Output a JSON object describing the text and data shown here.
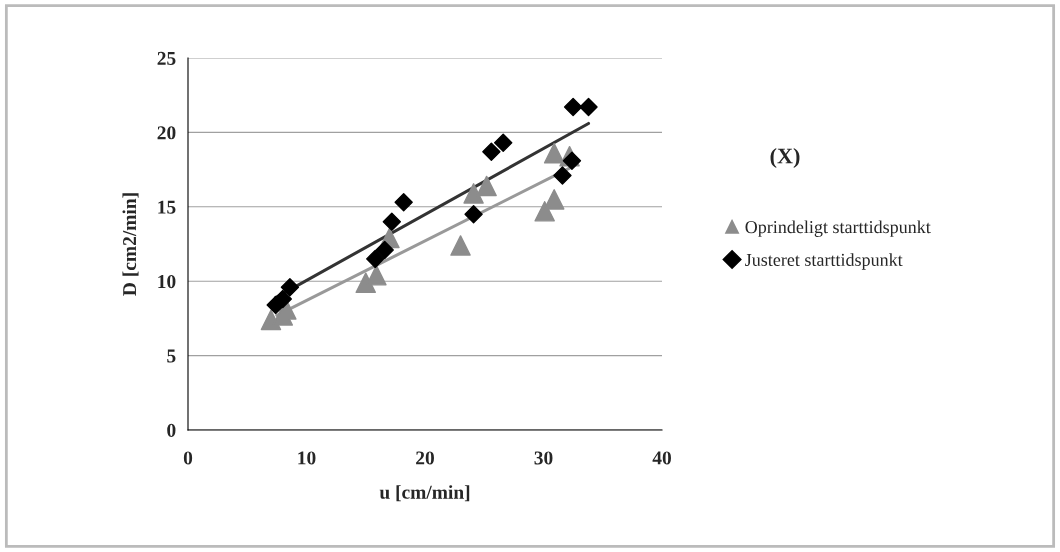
{
  "chart_data": {
    "type": "scatter",
    "xlabel": "u [cm/min]",
    "ylabel": "D [cm2/min]",
    "annotations": [
      "(X)"
    ],
    "xlim": [
      0,
      40
    ],
    "ylim": [
      0,
      25
    ],
    "xticks": [
      0,
      10,
      20,
      30,
      40
    ],
    "yticks": [
      0,
      5,
      10,
      15,
      20,
      25
    ],
    "grid": "y",
    "legend": "right",
    "series": [
      {
        "name": "Oprindeligt starttidspunkt",
        "color": "#8c8c8c",
        "marker": "triangle",
        "x": [
          7,
          8,
          8.3,
          15,
          15.9,
          17,
          23,
          24.1,
          25.2,
          30.1,
          30.9,
          30.9,
          32.2
        ],
        "values": [
          7.4,
          7.7,
          8.1,
          9.9,
          10.4,
          12.9,
          12.4,
          15.9,
          16.4,
          14.7,
          15.5,
          18.6,
          18.4
        ]
      },
      {
        "name": "Justeret starttidspunkt",
        "color": "#000000",
        "marker": "diamond",
        "x": [
          7.4,
          8,
          8.6,
          15.8,
          16.6,
          17.2,
          18.2,
          24.1,
          25.6,
          26.6,
          31.6,
          32.4,
          32.5,
          33.8
        ],
        "values": [
          8.4,
          8.8,
          9.6,
          11.5,
          12.1,
          14,
          15.3,
          14.5,
          18.7,
          19.3,
          17.1,
          18.1,
          21.7,
          21.7
        ]
      },
      {
        "type": "line",
        "color": "#999999",
        "marker": "none",
        "x": [
          7.5,
          32.2
        ],
        "values": [
          7.7,
          17.6
        ]
      },
      {
        "type": "line",
        "color": "#333333",
        "marker": "none",
        "x": [
          7.4,
          33.8
        ],
        "values": [
          8.9,
          20.6
        ]
      }
    ]
  }
}
